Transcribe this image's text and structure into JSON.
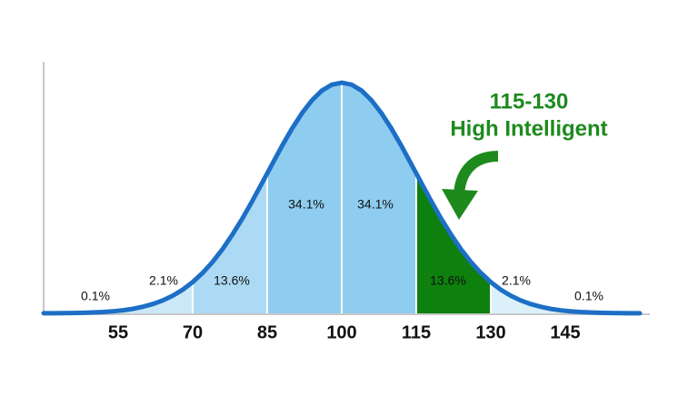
{
  "chart_data": {
    "type": "bell",
    "xlim": [
      40,
      160
    ],
    "xticks": [
      55,
      70,
      85,
      100,
      115,
      130,
      145
    ],
    "ylim": [
      0,
      0.029
    ],
    "values": [
      0.1,
      2.1,
      13.6,
      34.1,
      34.1,
      13.6,
      2.1,
      0.1
    ],
    "value_labels": [
      "0.1%",
      "2.1%",
      "13.6%",
      "34.1%",
      "34.1%",
      "13.6%",
      "2.1%",
      "0.1%"
    ],
    "colors": [
      "#e6f4fc",
      "#cbe8f8",
      "#acdaf4",
      "#8ecdf0",
      "#8ecdf0",
      "#0e800e",
      "#dcf0fa",
      "#eef8fd"
    ],
    "line_color": "#1d6fc6",
    "annotations": [
      "115-130",
      "High Intelligent"
    ],
    "annotation_color": "#1e8a1e"
  }
}
